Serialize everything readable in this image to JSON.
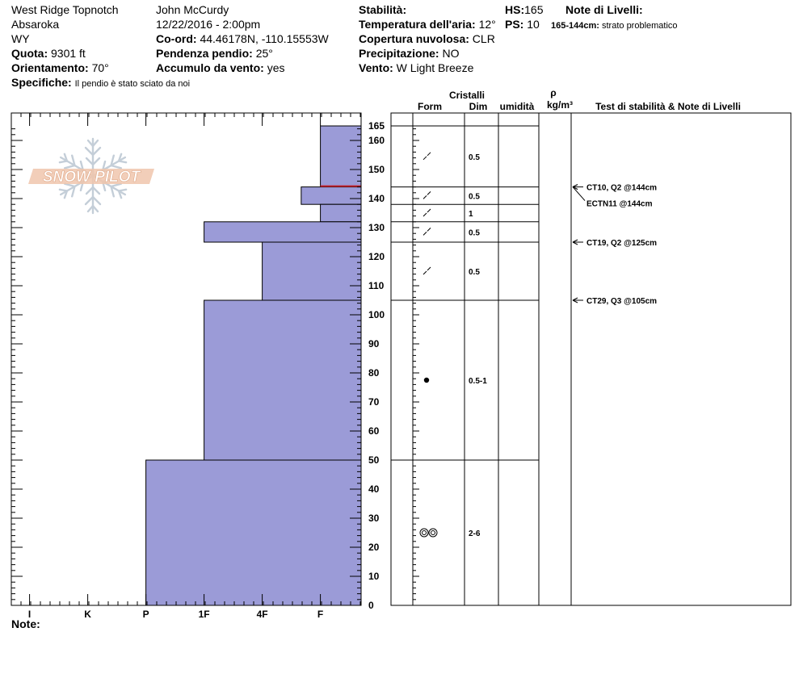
{
  "header": {
    "location": "West Ridge Topnotch",
    "range": "Absaroka",
    "state": "WY",
    "elevation_label": "Quota:",
    "elevation": "9301 ft",
    "aspect_label": "Orientamento:",
    "aspect": "70°",
    "specifics_label": "Specifiche:",
    "specifics": "Il pendio è stato sciato da noi",
    "observer": "John McCurdy",
    "datetime": "12/22/2016 - 2:00pm",
    "coord_label": "Co-ord:",
    "coord": "44.46178N, -110.15553W",
    "slope_label": "Pendenza pendio:",
    "slope": "25°",
    "wind_load_label": "Accumulo da vento:",
    "wind_load": "yes",
    "stability_label": "Stabilità:",
    "stability": "",
    "air_temp_label": "Temperatura dell'aria:",
    "air_temp": "12°",
    "cloud_label": "Copertura nuvolosa:",
    "cloud": "CLR",
    "precip_label": "Precipitazione:",
    "precip": "NO",
    "wind_label": "Vento:",
    "wind": "W Light Breeze",
    "hs_label": "HS:",
    "hs": "165",
    "ps_label": "PS:",
    "ps": "10",
    "layer_notes_label": "Note di Livelli:",
    "layer_note_range": "165-144cm:",
    "layer_note_text": "strato problematico"
  },
  "columns": {
    "crystals": "Cristalli",
    "form": "Form",
    "dim": "Dim",
    "humidity": "umidità",
    "rho": "ρ",
    "density_unit": "kg/m³",
    "stability_notes": "Test di stabilità & Note di Livelli"
  },
  "footer": {
    "note_label": "Note:"
  },
  "logo": {
    "text": "SNOW PILOT"
  },
  "colors": {
    "bar_fill": "#9b9bd7",
    "problem_line": "#c0202a"
  },
  "chart_data": {
    "type": "bar",
    "orientation": "horizontal",
    "xlabel": "",
    "ylabel": "",
    "x_categories": [
      "I",
      "K",
      "P",
      "1F",
      "4F",
      "F"
    ],
    "x_order": [
      "F",
      "4F",
      "1F",
      "P",
      "K",
      "I"
    ],
    "ylim": [
      0,
      165
    ],
    "yticks": [
      0,
      10,
      20,
      30,
      40,
      50,
      60,
      70,
      80,
      90,
      100,
      110,
      120,
      130,
      140,
      150,
      160,
      165
    ],
    "hardness_layers": [
      {
        "top": 165,
        "bottom": 144,
        "hardness": "F"
      },
      {
        "top": 144,
        "bottom": 138,
        "hardness": "F+"
      },
      {
        "top": 138,
        "bottom": 132,
        "hardness": "F"
      },
      {
        "top": 132,
        "bottom": 125,
        "hardness": "1F"
      },
      {
        "top": 125,
        "bottom": 105,
        "hardness": "4F"
      },
      {
        "top": 105,
        "bottom": 50,
        "hardness": "1F"
      },
      {
        "top": 50,
        "bottom": 0,
        "hardness": "P"
      }
    ],
    "problem_layer_height": 144,
    "layer_boundaries": [
      165,
      144,
      138,
      132,
      125,
      105,
      50,
      0
    ],
    "crystal_layers": [
      {
        "top": 165,
        "bottom": 144,
        "form": "decomposing",
        "dim": "0.5"
      },
      {
        "top": 144,
        "bottom": 138,
        "form": "decomposing",
        "dim": "0.5"
      },
      {
        "top": 138,
        "bottom": 132,
        "form": "decomposing",
        "dim": "1"
      },
      {
        "top": 132,
        "bottom": 125,
        "form": "decomposing",
        "dim": "0.5"
      },
      {
        "top": 125,
        "bottom": 105,
        "form": "decomposing",
        "dim": "0.5"
      },
      {
        "top": 105,
        "bottom": 50,
        "form": "rounded",
        "dim": "0.5-1"
      },
      {
        "top": 50,
        "bottom": 0,
        "form": "melt-forms",
        "dim": "2-6"
      }
    ],
    "stability_tests": [
      {
        "height": 144,
        "label": "CT10, Q2 @144cm"
      },
      {
        "height": 144,
        "label": "ECTN11 @144cm"
      },
      {
        "height": 125,
        "label": "CT19, Q2 @125cm"
      },
      {
        "height": 105,
        "label": "CT29, Q3 @105cm"
      }
    ]
  }
}
